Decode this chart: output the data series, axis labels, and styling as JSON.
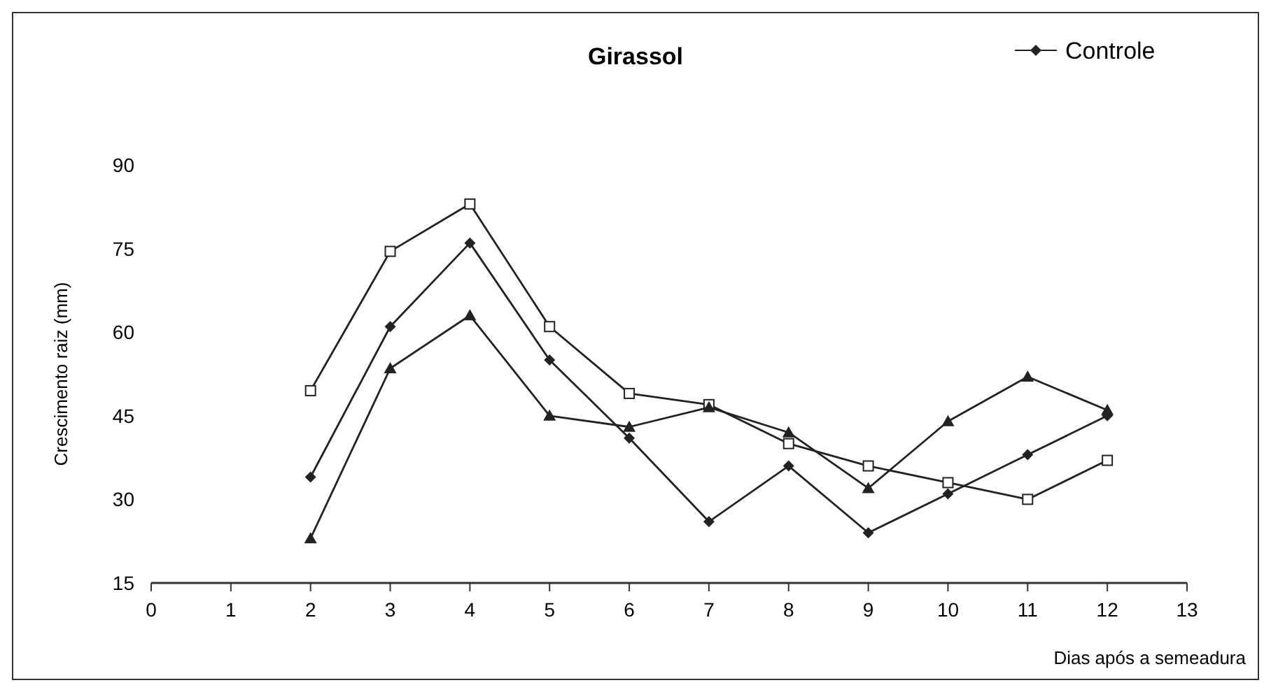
{
  "chart_data": {
    "type": "line",
    "title": "Girassol",
    "xlabel": "Dias após a semeadura",
    "ylabel": "Crescimento raiz (mm)",
    "x": [
      2,
      3,
      4,
      5,
      6,
      7,
      8,
      9,
      10,
      11,
      12
    ],
    "series": [
      {
        "name": "Controle",
        "color": "#222222",
        "marker": "diamond",
        "values": [
          34,
          61,
          76,
          55,
          41,
          26,
          36,
          24,
          31,
          38,
          45
        ]
      },
      {
        "color": "#222222",
        "marker": "square",
        "values": [
          49.5,
          74.5,
          83,
          61,
          49,
          47,
          40,
          36,
          33,
          30,
          37
        ]
      },
      {
        "color": "#222222",
        "marker": "triangle",
        "values": [
          23,
          53.5,
          63,
          45,
          43,
          46.5,
          42,
          32,
          44,
          52,
          46
        ]
      }
    ],
    "xlim": [
      0,
      13
    ],
    "xticks": [
      0,
      1,
      2,
      3,
      4,
      5,
      6,
      7,
      8,
      9,
      10,
      11,
      12,
      13
    ],
    "ylim": [
      15,
      90
    ],
    "yticks": [
      15,
      30,
      45,
      60,
      75,
      90
    ],
    "grid": false,
    "legend": "top right",
    "line_style": "solid"
  }
}
